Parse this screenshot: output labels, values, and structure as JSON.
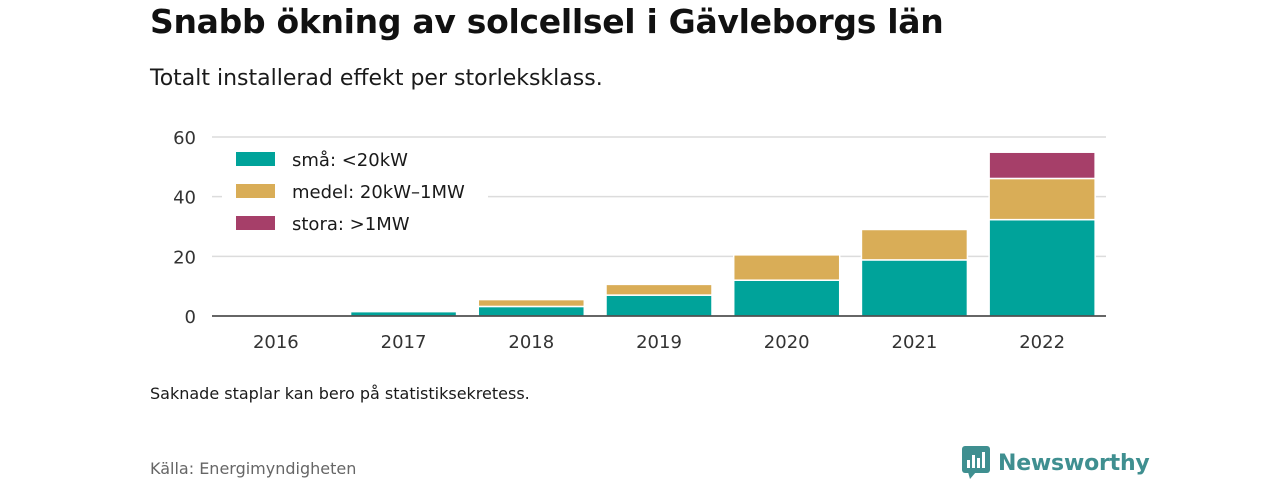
{
  "title": "Snabb ökning av solcellsel i Gävleborgs län",
  "subtitle": "Totalt installerad effekt per storleksklass.",
  "footnote": "Saknade staplar kan bero på statistiksekretess.",
  "source": "Källa: Energimyndigheten",
  "brand": {
    "name": "Newsworthy",
    "icon": "newsworthy-logo-icon",
    "color": "#3f8f90"
  },
  "chart_data": {
    "type": "bar",
    "stacked": true,
    "categories": [
      "2016",
      "2017",
      "2018",
      "2019",
      "2020",
      "2021",
      "2022"
    ],
    "series": [
      {
        "name": "små: <20kW",
        "color": "#00a39a",
        "values": [
          0.5,
          1.5,
          3.2,
          7.0,
          12.0,
          18.8,
          32.3
        ]
      },
      {
        "name": "medel: 20kW–1MW",
        "color": "#d9ad57",
        "values": [
          0.1,
          0.4,
          2.3,
          3.6,
          8.5,
          10.2,
          13.8
        ]
      },
      {
        "name": "stora: >1MW",
        "color": "#a63f69",
        "values": [
          0,
          0,
          0,
          0,
          0,
          0,
          8.8
        ]
      }
    ],
    "ylim": [
      0,
      60
    ],
    "yticks": [
      0,
      20,
      40,
      60
    ],
    "grid": true,
    "legend_position": "top-left",
    "xlabel": "",
    "ylabel": ""
  }
}
